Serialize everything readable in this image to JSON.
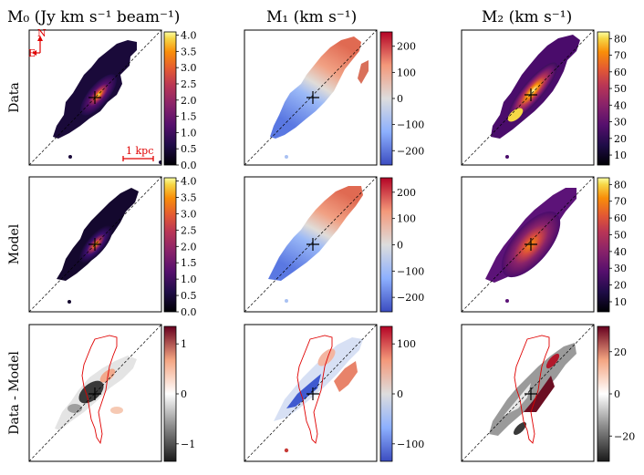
{
  "chart_data": {
    "type": "heatmap",
    "columns": [
      {
        "title": "M₀  (Jy km s⁻¹ beam⁻¹)",
        "quantity": "M0"
      },
      {
        "title": "M₁  (km s⁻¹)",
        "quantity": "M1"
      },
      {
        "title": "M₂  (km s⁻¹)",
        "quantity": "M2"
      }
    ],
    "rows": [
      "Data",
      "Model",
      "Data - Model"
    ],
    "colorbars": [
      [
        {
          "cmap": "inferno",
          "range": [
            0.0,
            4.1
          ],
          "ticks": [
            "0.0",
            "0.5",
            "1.0",
            "1.5",
            "2.0",
            "2.5",
            "3.0",
            "3.5",
            "4.0"
          ],
          "tick_values": [
            0,
            0.5,
            1,
            1.5,
            2,
            2.5,
            3,
            3.5,
            4
          ]
        },
        {
          "cmap": "coolwarm",
          "range": [
            -255,
            255
          ],
          "ticks": [
            "−200",
            "−100",
            "0",
            "100",
            "200"
          ],
          "tick_values": [
            -200,
            -100,
            0,
            100,
            200
          ]
        },
        {
          "cmap": "inferno",
          "range": [
            4,
            84
          ],
          "ticks": [
            "10",
            "20",
            "30",
            "40",
            "50",
            "60",
            "70",
            "80"
          ],
          "tick_values": [
            10,
            20,
            30,
            40,
            50,
            60,
            70,
            80
          ]
        }
      ],
      [
        {
          "cmap": "inferno",
          "range": [
            0.0,
            4.1
          ],
          "ticks": [
            "0.0",
            "0.5",
            "1.0",
            "1.5",
            "2.0",
            "2.5",
            "3.0",
            "3.5",
            "4.0"
          ],
          "tick_values": [
            0,
            0.5,
            1,
            1.5,
            2,
            2.5,
            3,
            3.5,
            4
          ]
        },
        {
          "cmap": "coolwarm",
          "range": [
            -255,
            255
          ],
          "ticks": [
            "−200",
            "−100",
            "0",
            "100",
            "200"
          ],
          "tick_values": [
            -200,
            -100,
            0,
            100,
            200
          ]
        },
        {
          "cmap": "inferno",
          "range": [
            4,
            84
          ],
          "ticks": [
            "10",
            "20",
            "30",
            "40",
            "50",
            "60",
            "70",
            "80"
          ],
          "tick_values": [
            10,
            20,
            30,
            40,
            50,
            60,
            70,
            80
          ]
        }
      ],
      [
        {
          "cmap": "RdGy",
          "range": [
            -1.35,
            1.35
          ],
          "ticks": [
            "−1",
            "0",
            "1"
          ],
          "tick_values": [
            -1,
            0,
            1
          ]
        },
        {
          "cmap": "coolwarm",
          "range": [
            -135,
            135
          ],
          "ticks": [
            "−100",
            "0",
            "100"
          ],
          "tick_values": [
            -100,
            0,
            100
          ]
        },
        {
          "cmap": "RdGy",
          "range": [
            -32,
            32
          ],
          "ticks": [
            "−20",
            "0",
            "20"
          ],
          "tick_values": [
            -20,
            0,
            20
          ]
        }
      ]
    ],
    "annotations": {
      "north": "N",
      "east": "E",
      "scalebar": "1 kpc"
    }
  }
}
